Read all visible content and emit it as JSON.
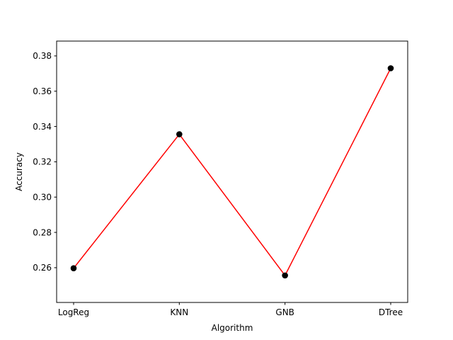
{
  "chart_data": {
    "type": "line",
    "categories": [
      "LogReg",
      "KNN",
      "GNB",
      "DTree"
    ],
    "series": [
      {
        "values": [
          0.2597,
          0.3356,
          0.2556,
          0.373
        ]
      }
    ],
    "xlabel": "Algorithm",
    "ylabel": "Accuracy",
    "ylim": [
      0.2403,
      0.3884
    ],
    "yticks": [
      "0.26",
      "0.28",
      "0.30",
      "0.32",
      "0.34",
      "0.36",
      "0.38"
    ],
    "ytick_values": [
      0.26,
      0.28,
      0.3,
      0.32,
      0.34,
      0.36,
      0.38
    ],
    "grid": false,
    "colors": {
      "line": "#ff0000",
      "marker": "#000000"
    }
  }
}
